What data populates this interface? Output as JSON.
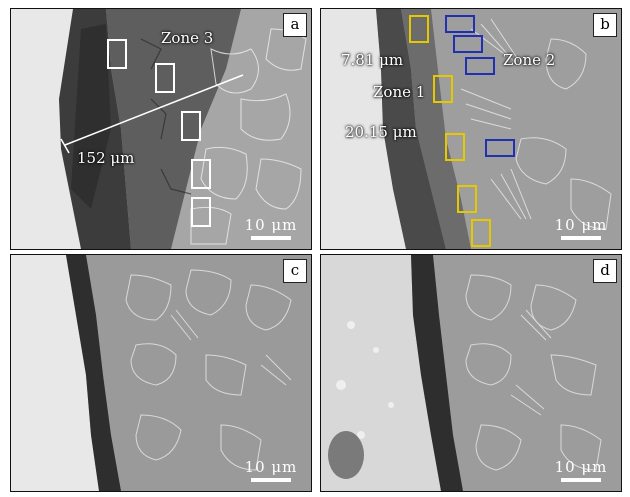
{
  "panels": {
    "a": {
      "label": "a",
      "scale": "10 μm",
      "zone3": "Zone 3",
      "thickness": "152 μm"
    },
    "b": {
      "label": "b",
      "scale": "10 μm",
      "zone1": "Zone 1",
      "zone2": "Zone 2",
      "m1": "7.81 μm",
      "m2": "20.15 μm"
    },
    "c": {
      "label": "c",
      "scale": "10 μm"
    },
    "d": {
      "label": "d",
      "scale": "10 μm"
    }
  },
  "colors": {
    "frame": "#111111",
    "marker_white": "#ffffff",
    "marker_yellow": "#e6c800",
    "marker_blue": "#2030b0"
  }
}
